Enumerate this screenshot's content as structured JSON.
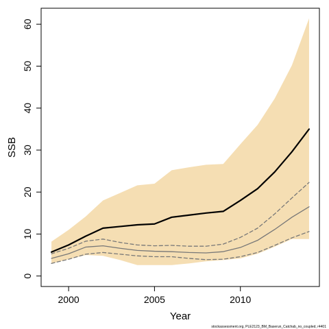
{
  "chart_data": {
    "type": "line",
    "title": "",
    "xlabel": "Year",
    "ylabel": "SSB",
    "xlim": [
      1998.4,
      2014.6
    ],
    "ylim": [
      -2.5,
      63.8
    ],
    "x_ticks": [
      2000,
      2005,
      2010
    ],
    "y_ticks": [
      0,
      10,
      20,
      30,
      40,
      50,
      60
    ],
    "grid": false,
    "legend": "none",
    "x": [
      1999,
      2000,
      2001,
      2002,
      2003,
      2004,
      2005,
      2006,
      2007,
      2008,
      2009,
      2010,
      2011,
      2012,
      2013,
      2014
    ],
    "band": {
      "name": "",
      "color": "#f5deb3",
      "upper": [
        8.2,
        11.0,
        14.2,
        18.0,
        19.8,
        21.6,
        22.0,
        25.2,
        25.9,
        26.5,
        26.7,
        31.4,
        36.0,
        42.3,
        50.2,
        61.4
      ],
      "lower": [
        3.0,
        4.0,
        5.0,
        4.8,
        3.8,
        2.6,
        2.6,
        2.6,
        3.0,
        3.5,
        3.8,
        4.2,
        5.3,
        7.0,
        8.8,
        8.8
      ]
    },
    "series": [
      {
        "name": "",
        "color": "#000000",
        "style": "solid",
        "width": 2.2,
        "values": [
          5.7,
          7.4,
          9.5,
          11.4,
          11.8,
          12.2,
          12.4,
          14.0,
          14.5,
          15.0,
          15.4,
          18.0,
          20.8,
          24.8,
          29.6,
          35.0
        ]
      },
      {
        "name": "",
        "color": "#777777",
        "style": "dashed",
        "width": 1.3,
        "values": [
          5.3,
          6.6,
          8.3,
          8.8,
          8.0,
          7.4,
          7.2,
          7.3,
          7.1,
          7.1,
          7.6,
          9.2,
          11.4,
          14.8,
          18.6,
          22.3
        ]
      },
      {
        "name": "",
        "color": "#777777",
        "style": "solid",
        "width": 1.3,
        "values": [
          4.2,
          5.3,
          6.9,
          7.2,
          6.6,
          6.1,
          5.9,
          5.8,
          5.6,
          5.5,
          5.8,
          6.8,
          8.5,
          11.1,
          14.0,
          16.5
        ]
      },
      {
        "name": "",
        "color": "#777777",
        "style": "dashed",
        "width": 1.3,
        "values": [
          3.0,
          4.0,
          5.2,
          5.6,
          5.2,
          4.8,
          4.6,
          4.6,
          4.2,
          3.9,
          4.0,
          4.6,
          5.6,
          7.3,
          9.1,
          10.6
        ]
      }
    ]
  },
  "footer": {
    "credit": "stockassessment.org, PLE2123_BM_Baserun_Catchab_no_coupled, r4401"
  }
}
